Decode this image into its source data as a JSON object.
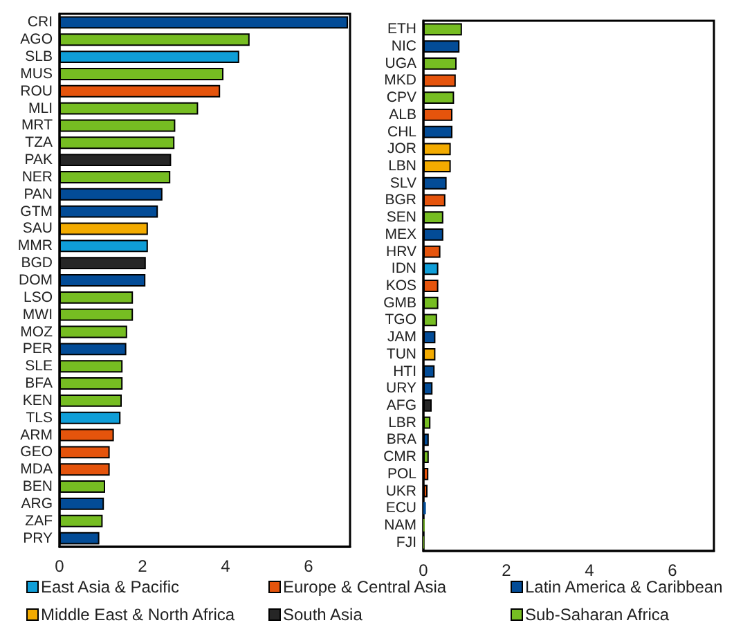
{
  "chart_data": [
    {
      "type": "bar",
      "orientation": "horizontal",
      "stacked": true,
      "legend": "bottom",
      "grid": false,
      "categories": [
        "CRI",
        "AGO",
        "SLB",
        "MUS",
        "ROU",
        "MLI",
        "MRT",
        "TZA",
        "PAK",
        "NER",
        "PAN",
        "GTM",
        "SAU",
        "MMR",
        "BGD",
        "DOM",
        "LSO",
        "MWI",
        "MOZ",
        "PER",
        "SLE",
        "BFA",
        "KEN",
        "TLS",
        "ARM",
        "GEO",
        "MDA",
        "BEN",
        "ARG",
        "ZAF",
        "PRY"
      ],
      "xlim": [
        0,
        7
      ],
      "xticks": [
        0,
        2,
        4,
        6
      ],
      "series": [
        {
          "name": "East Asia & Pacific",
          "color": "#0f9ed8",
          "values": [
            null,
            null,
            4.33,
            null,
            null,
            null,
            null,
            null,
            null,
            null,
            null,
            null,
            null,
            2.13,
            null,
            null,
            null,
            null,
            null,
            null,
            null,
            null,
            null,
            1.47,
            null,
            null,
            null,
            null,
            null,
            null,
            null
          ]
        },
        {
          "name": "Europe & Central Asia",
          "color": "#e5540c",
          "values": [
            null,
            null,
            null,
            null,
            3.87,
            null,
            null,
            null,
            null,
            null,
            null,
            null,
            null,
            null,
            null,
            null,
            null,
            null,
            null,
            null,
            null,
            null,
            null,
            null,
            1.31,
            1.21,
            1.21,
            null,
            null,
            null,
            null
          ]
        },
        {
          "name": "Latin America & Caribbean",
          "color": "#034c97",
          "values": [
            6.95,
            null,
            null,
            null,
            null,
            null,
            null,
            null,
            null,
            null,
            2.48,
            2.37,
            null,
            null,
            null,
            2.07,
            null,
            null,
            null,
            1.61,
            null,
            null,
            null,
            null,
            null,
            null,
            null,
            null,
            1.07,
            null,
            0.96
          ]
        },
        {
          "name": "Middle East & North Africa",
          "color": "#f3ab00",
          "values": [
            null,
            null,
            null,
            null,
            null,
            null,
            null,
            null,
            null,
            null,
            null,
            null,
            2.13,
            null,
            null,
            null,
            null,
            null,
            null,
            null,
            null,
            null,
            null,
            null,
            null,
            null,
            null,
            null,
            null,
            null,
            null
          ]
        },
        {
          "name": "South Asia",
          "color": "#262626",
          "values": [
            null,
            null,
            null,
            null,
            null,
            null,
            null,
            null,
            2.69,
            null,
            null,
            null,
            null,
            null,
            2.08,
            null,
            null,
            null,
            null,
            null,
            null,
            null,
            null,
            null,
            null,
            null,
            null,
            null,
            null,
            null,
            null
          ]
        },
        {
          "name": "Sub-Saharan Africa",
          "color": "#76bd22",
          "values": [
            null,
            4.58,
            null,
            3.95,
            null,
            3.34,
            2.79,
            2.77,
            null,
            2.67,
            null,
            null,
            null,
            null,
            null,
            null,
            1.77,
            1.77,
            1.63,
            null,
            1.52,
            1.52,
            1.5,
            null,
            null,
            null,
            null,
            1.1,
            null,
            1.04,
            null
          ]
        }
      ]
    },
    {
      "type": "bar",
      "orientation": "horizontal",
      "stacked": true,
      "grid": false,
      "categories": [
        "ETH",
        "NIC",
        "UGA",
        "MKD",
        "CPV",
        "ALB",
        "CHL",
        "JOR",
        "LBN",
        "SLV",
        "BGR",
        "SEN",
        "MEX",
        "HRV",
        "IDN",
        "KOS",
        "GMB",
        "TGO",
        "JAM",
        "TUN",
        "HTI",
        "URY",
        "AFG",
        "LBR",
        "BRA",
        "CMR",
        "POL",
        "UKR",
        "ECU",
        "NAM",
        "FJI"
      ],
      "xlim": [
        0,
        7
      ],
      "xticks": [
        0,
        2,
        4,
        6
      ],
      "series": [
        {
          "color": "#0f9ed8",
          "values": [
            null,
            null,
            null,
            null,
            null,
            null,
            null,
            null,
            null,
            null,
            null,
            null,
            null,
            null,
            0.36,
            null,
            null,
            null,
            null,
            null,
            null,
            null,
            null,
            null,
            null,
            null,
            null,
            null,
            null,
            null,
            null
          ]
        },
        {
          "color": "#e5540c",
          "values": [
            null,
            null,
            null,
            0.78,
            null,
            0.7,
            null,
            null,
            null,
            null,
            0.53,
            null,
            null,
            0.41,
            null,
            0.36,
            null,
            null,
            null,
            null,
            null,
            null,
            null,
            null,
            null,
            null,
            0.12,
            0.1,
            null,
            null,
            null
          ]
        },
        {
          "color": "#034c97",
          "values": [
            null,
            0.87,
            null,
            null,
            null,
            null,
            0.7,
            null,
            null,
            0.56,
            null,
            null,
            0.48,
            null,
            null,
            null,
            null,
            null,
            0.29,
            null,
            0.27,
            0.22,
            null,
            null,
            0.13,
            null,
            null,
            null,
            0.06,
            null,
            null
          ]
        },
        {
          "color": "#f3ab00",
          "values": [
            null,
            null,
            null,
            null,
            null,
            null,
            null,
            0.66,
            0.66,
            null,
            null,
            null,
            null,
            null,
            null,
            null,
            null,
            null,
            null,
            0.29,
            null,
            null,
            null,
            null,
            null,
            null,
            null,
            null,
            null,
            null,
            null
          ]
        },
        {
          "color": "#262626",
          "values": [
            null,
            null,
            null,
            null,
            null,
            null,
            null,
            null,
            null,
            null,
            null,
            null,
            null,
            null,
            null,
            null,
            null,
            null,
            null,
            null,
            null,
            null,
            0.2,
            null,
            null,
            null,
            null,
            null,
            null,
            null,
            null
          ]
        },
        {
          "color": "#76bd22",
          "values": [
            0.93,
            null,
            0.8,
            null,
            0.74,
            null,
            null,
            null,
            null,
            null,
            null,
            0.48,
            null,
            null,
            null,
            null,
            0.36,
            0.33,
            null,
            null,
            null,
            null,
            null,
            0.17,
            null,
            0.13,
            null,
            null,
            null,
            0.03,
            0.02
          ]
        }
      ]
    }
  ]
}
